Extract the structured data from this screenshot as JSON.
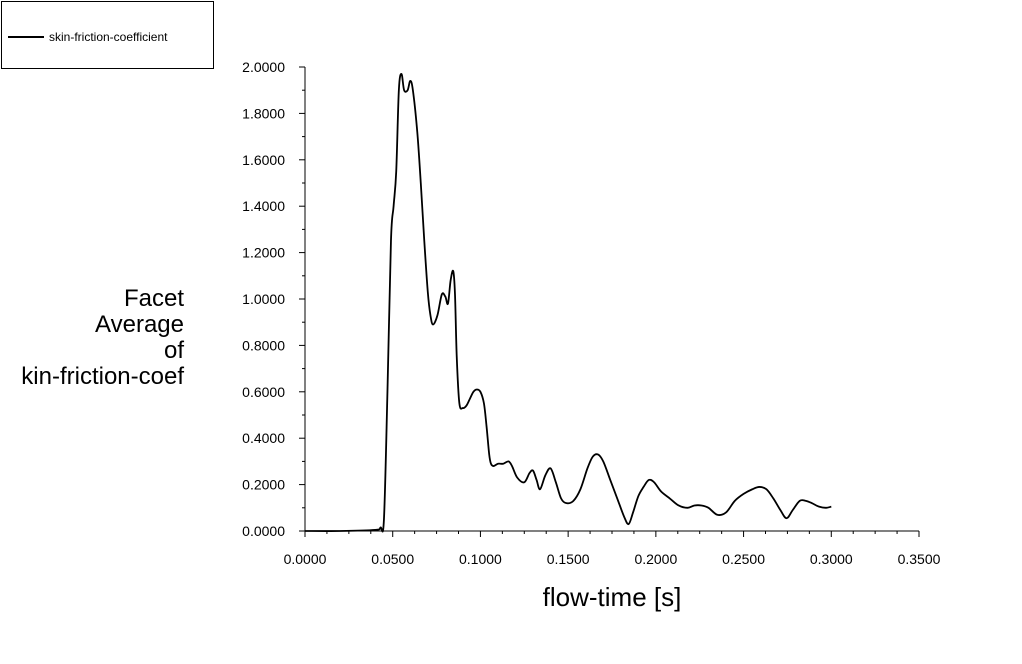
{
  "chart_data": {
    "type": "line",
    "xlabel": "flow-time [s]",
    "ylabel_lines": [
      "Facet",
      "Average",
      "of",
      "kin-friction-coef"
    ],
    "xlim": [
      0,
      0.35
    ],
    "ylim": [
      0,
      2.0
    ],
    "x_ticks": [
      "0.0000",
      "0.0500",
      "0.1000",
      "0.1500",
      "0.2000",
      "0.2500",
      "0.3000",
      "0.3500"
    ],
    "y_ticks": [
      "0.0000",
      "0.2000",
      "0.4000",
      "0.6000",
      "0.8000",
      "1.0000",
      "1.2000",
      "1.4000",
      "1.6000",
      "1.8000",
      "2.0000"
    ],
    "legend_position": "top-left",
    "series": [
      {
        "name": "skin-friction-coefficient",
        "color": "#000000",
        "x": [
          0,
          0.02,
          0.04,
          0.043,
          0.045,
          0.047,
          0.049,
          0.0505,
          0.052,
          0.0535,
          0.055,
          0.0565,
          0.0585,
          0.06,
          0.0615,
          0.064,
          0.066,
          0.068,
          0.07,
          0.0715,
          0.073,
          0.0755,
          0.078,
          0.08,
          0.0815,
          0.083,
          0.0845,
          0.0855,
          0.0865,
          0.088,
          0.09,
          0.092,
          0.094,
          0.096,
          0.098,
          0.1,
          0.102,
          0.1035,
          0.105,
          0.106,
          0.1075,
          0.11,
          0.113,
          0.116,
          0.118,
          0.121,
          0.125,
          0.128,
          0.13,
          0.132,
          0.134,
          0.137,
          0.14,
          0.143,
          0.146,
          0.149,
          0.153,
          0.157,
          0.161,
          0.164,
          0.167,
          0.17,
          0.174,
          0.178,
          0.182,
          0.1845,
          0.187,
          0.19,
          0.193,
          0.196,
          0.199,
          0.203,
          0.208,
          0.213,
          0.218,
          0.222,
          0.226,
          0.23,
          0.235,
          0.24,
          0.245,
          0.25,
          0.255,
          0.259,
          0.263,
          0.267,
          0.271,
          0.2745,
          0.278,
          0.282,
          0.2855,
          0.289,
          0.293,
          0.297,
          0.3
        ],
        "y": [
          0.0,
          0.0,
          0.005,
          0.015,
          0.05,
          0.6,
          1.25,
          1.4,
          1.55,
          1.9,
          1.97,
          1.9,
          1.9,
          1.94,
          1.9,
          1.72,
          1.5,
          1.25,
          1.03,
          0.93,
          0.89,
          0.93,
          1.02,
          1.01,
          0.98,
          1.08,
          1.12,
          1.02,
          0.75,
          0.55,
          0.53,
          0.54,
          0.57,
          0.6,
          0.61,
          0.6,
          0.55,
          0.45,
          0.33,
          0.29,
          0.28,
          0.29,
          0.29,
          0.3,
          0.28,
          0.23,
          0.21,
          0.25,
          0.26,
          0.22,
          0.18,
          0.24,
          0.27,
          0.21,
          0.14,
          0.12,
          0.13,
          0.18,
          0.27,
          0.32,
          0.33,
          0.3,
          0.22,
          0.14,
          0.06,
          0.03,
          0.08,
          0.15,
          0.19,
          0.22,
          0.21,
          0.17,
          0.14,
          0.11,
          0.1,
          0.11,
          0.11,
          0.1,
          0.07,
          0.08,
          0.13,
          0.16,
          0.18,
          0.19,
          0.18,
          0.14,
          0.09,
          0.055,
          0.09,
          0.13,
          0.13,
          0.12,
          0.105,
          0.1,
          0.105
        ]
      }
    ]
  }
}
